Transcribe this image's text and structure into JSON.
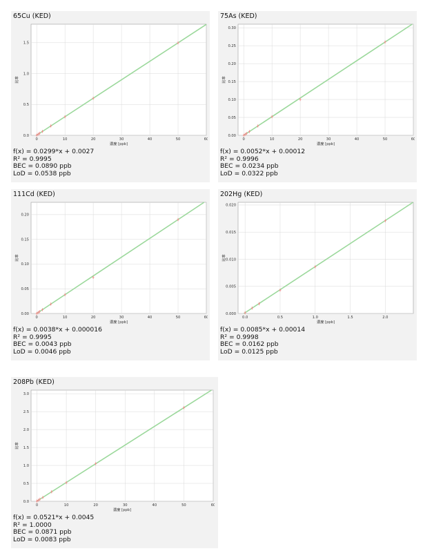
{
  "panels": [
    {
      "title": "65Cu (KED)",
      "equation": "f(x) = 0.0299*x + 0.0027",
      "r2": "R² = 0.9995",
      "bec": "BEC = 0.0890 ppb",
      "lod": "LoD = 0.0538 ppb"
    },
    {
      "title": "75As (KED)",
      "equation": "f(x) = 0.0052*x + 0.00012",
      "r2": "R² = 0.9996",
      "bec": "BEC = 0.0234 ppb",
      "lod": "LoD = 0.0322 ppb"
    },
    {
      "title": "111Cd (KED)",
      "equation": "f(x) = 0.0038*x + 0.000016",
      "r2": "R² = 0.9995",
      "bec": "BEC = 0.0043 ppb",
      "lod": "LoD = 0.0046 ppb"
    },
    {
      "title": "202Hg (KED)",
      "equation": "f(x) = 0.0085*x + 0.00014",
      "r2": "R² = 0.9998",
      "bec": "BEC = 0.0162 ppb",
      "lod": "LoD = 0.0125 ppb"
    },
    {
      "title": "208Pb (KED)",
      "equation": "f(x) = 0.0521*x + 0.0045",
      "r2": "R² = 1.0000",
      "bec": "BEC = 0.0871 ppb",
      "lod": "LoD = 0.0083 ppb"
    }
  ],
  "colors": {
    "line": "#9bd89b",
    "point": "#f08a8a",
    "panel_bg": "#f2f2f2",
    "plot_bg": "#ffffff",
    "grid": "#d8d8d8"
  },
  "chart_data": [
    {
      "type": "scatter",
      "title": "65Cu (KED)",
      "xlabel": "濃度 [ppb]",
      "ylabel": "比率",
      "xlim": [
        -2,
        60
      ],
      "ylim": [
        0,
        1.8
      ],
      "xticks": [
        "0",
        "10",
        "20",
        "30",
        "40",
        "50",
        "60"
      ],
      "yticks": [
        "0.0",
        "0.5",
        "1.0",
        "1.5"
      ],
      "grid": true,
      "fit": {
        "slope": 0.0299,
        "intercept": 0.0027
      },
      "points": {
        "x": [
          0,
          0.5,
          1,
          2,
          5,
          10,
          20,
          50
        ],
        "y": [
          0.003,
          0.018,
          0.033,
          0.063,
          0.152,
          0.3,
          0.6,
          1.497
        ]
      }
    },
    {
      "type": "scatter",
      "title": "75As (KED)",
      "xlabel": "濃度 [ppb]",
      "ylabel": "比率",
      "xlim": [
        -2,
        60
      ],
      "ylim": [
        0,
        0.31
      ],
      "xticks": [
        "0",
        "10",
        "20",
        "30",
        "40",
        "50",
        "60"
      ],
      "yticks": [
        "0.00",
        "0.05",
        "0.10",
        "0.15",
        "0.20",
        "0.25",
        "0.30"
      ],
      "grid": true,
      "fit": {
        "slope": 0.0052,
        "intercept": 0.00012
      },
      "points": {
        "x": [
          0,
          0.5,
          1,
          2,
          5,
          10,
          20,
          50
        ],
        "y": [
          0.0001,
          0.0027,
          0.0053,
          0.0105,
          0.026,
          0.052,
          0.1,
          0.26
        ]
      }
    },
    {
      "type": "scatter",
      "title": "111Cd (KED)",
      "xlabel": "濃度 [ppb]",
      "ylabel": "比率",
      "xlim": [
        -2,
        60
      ],
      "ylim": [
        0,
        0.225
      ],
      "xticks": [
        "0",
        "10",
        "20",
        "30",
        "40",
        "50",
        "60"
      ],
      "yticks": [
        "0.00",
        "0.05",
        "0.10",
        "0.15",
        "0.20"
      ],
      "grid": true,
      "fit": {
        "slope": 0.0038,
        "intercept": 1.6e-05
      },
      "points": {
        "x": [
          0,
          0.5,
          1,
          2,
          5,
          10,
          20,
          50
        ],
        "y": [
          0.0,
          0.0019,
          0.0038,
          0.0076,
          0.019,
          0.038,
          0.073,
          0.19
        ]
      }
    },
    {
      "type": "scatter",
      "title": "202Hg (KED)",
      "xlabel": "濃度 [ppb]",
      "ylabel": "比率",
      "xlim": [
        -0.1,
        2.4
      ],
      "ylim": [
        0,
        0.0205
      ],
      "xticks": [
        "0.0",
        "0.5",
        "1.0",
        "1.5",
        "2.0"
      ],
      "yticks": [
        "0.000",
        "0.005",
        "0.010",
        "0.015",
        "0.020"
      ],
      "grid": true,
      "fit": {
        "slope": 0.0085,
        "intercept": 0.00014
      },
      "points": {
        "x": [
          0,
          0.1,
          0.2,
          0.5,
          1.0,
          2.0
        ],
        "y": [
          0.00014,
          0.001,
          0.0018,
          0.0043,
          0.0086,
          0.0171
        ]
      }
    },
    {
      "type": "scatter",
      "title": "208Pb (KED)",
      "xlabel": "濃度 [ppb]",
      "ylabel": "比率",
      "xlim": [
        -2,
        60
      ],
      "ylim": [
        0,
        3.1
      ],
      "xticks": [
        "0",
        "10",
        "20",
        "30",
        "40",
        "50",
        "60"
      ],
      "yticks": [
        "0.0",
        "0.5",
        "1.0",
        "1.5",
        "2.0",
        "2.5",
        "3.0"
      ],
      "grid": true,
      "fit": {
        "slope": 0.0521,
        "intercept": 0.0045
      },
      "points": {
        "x": [
          0,
          0.5,
          1,
          2,
          5,
          10,
          20,
          50
        ],
        "y": [
          0.005,
          0.03,
          0.056,
          0.108,
          0.265,
          0.52,
          1.05,
          2.61
        ]
      }
    }
  ]
}
